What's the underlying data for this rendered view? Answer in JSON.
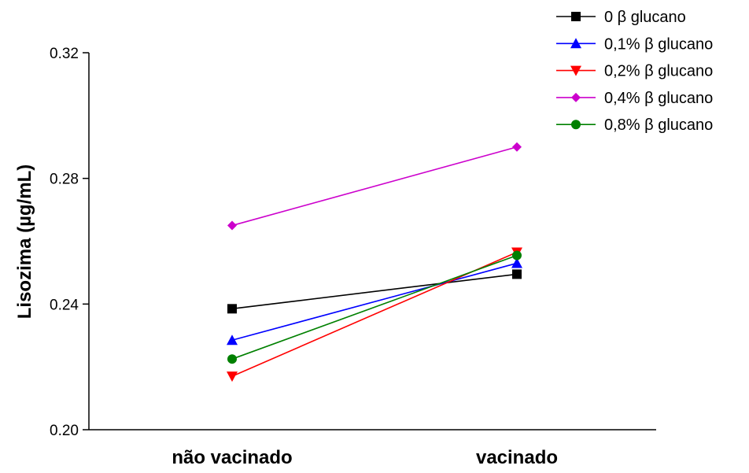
{
  "chart_data": {
    "type": "line",
    "categories": [
      "não vacinado",
      "vacinado"
    ],
    "ylabel": "Lisozima (µg/mL)",
    "xlabel": "",
    "ylim": [
      0.2,
      0.32
    ],
    "yticks": [
      0.2,
      0.24,
      0.28,
      0.32
    ],
    "ytick_labels": [
      "0.20",
      "0.24",
      "0.28",
      "0.32"
    ],
    "legend_position": "top-right",
    "series": [
      {
        "name": "0 β glucano",
        "values": [
          0.2385,
          0.2495
        ],
        "color": "#000000",
        "marker": "square"
      },
      {
        "name": "0,1% β glucano",
        "values": [
          0.2285,
          0.253
        ],
        "color": "#0000ff",
        "marker": "triangle-up"
      },
      {
        "name": "0,2% β glucano",
        "values": [
          0.217,
          0.2565
        ],
        "color": "#ff0000",
        "marker": "triangle-down"
      },
      {
        "name": "0,4% β glucano",
        "values": [
          0.265,
          0.29
        ],
        "color": "#cc00cc",
        "marker": "diamond"
      },
      {
        "name": "0,8% β glucano",
        "values": [
          0.2225,
          0.2555
        ],
        "color": "#008000",
        "marker": "circle"
      }
    ]
  }
}
